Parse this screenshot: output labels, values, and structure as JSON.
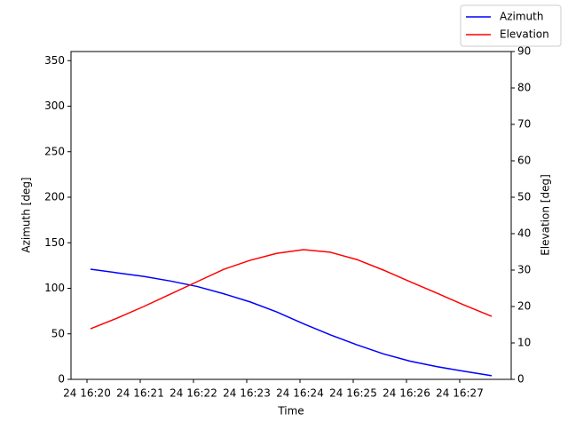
{
  "chart_data": {
    "type": "line",
    "xlabel": "Time",
    "ylabel": "Azimuth [deg]",
    "y2label": "Elevation [deg]",
    "x": [
      "24 16:20:04",
      "24 16:20:34",
      "24 16:21:04",
      "24 16:21:34",
      "24 16:22:04",
      "24 16:22:34",
      "24 16:23:04",
      "24 16:23:34",
      "24 16:24:04",
      "24 16:24:34",
      "24 16:25:04",
      "24 16:25:34",
      "24 16:26:04",
      "24 16:26:34",
      "24 16:27:04",
      "24 16:27:36"
    ],
    "series": [
      {
        "name": "Azimuth",
        "color": "#0000ff",
        "values": [
          121,
          117,
          113,
          108,
          102,
          94,
          85,
          74,
          61,
          49,
          38,
          28,
          20,
          14,
          9,
          4
        ]
      },
      {
        "name": "Elevation",
        "color": "#ff0000",
        "axis": "y2",
        "values": [
          13.9,
          16.8,
          20,
          23.4,
          26.8,
          30.2,
          32.7,
          34.6,
          35.6,
          34.9,
          32.9,
          30,
          26.8,
          23.7,
          20.5,
          17.3
        ]
      }
    ],
    "xlim": [
      "24 16:19:42",
      "24 16:27:58"
    ],
    "xticks": [
      "24 16:20",
      "24 16:21",
      "24 16:22",
      "24 16:23",
      "24 16:24",
      "24 16:25",
      "24 16:26",
      "24 16:27"
    ],
    "ylim": [
      0,
      360
    ],
    "yticks": [
      0,
      50,
      100,
      150,
      200,
      250,
      300,
      350
    ],
    "y2lim": [
      0,
      90
    ],
    "y2ticks": [
      0,
      10,
      20,
      30,
      40,
      50,
      60,
      70,
      80,
      90
    ],
    "legend": "upper right"
  }
}
